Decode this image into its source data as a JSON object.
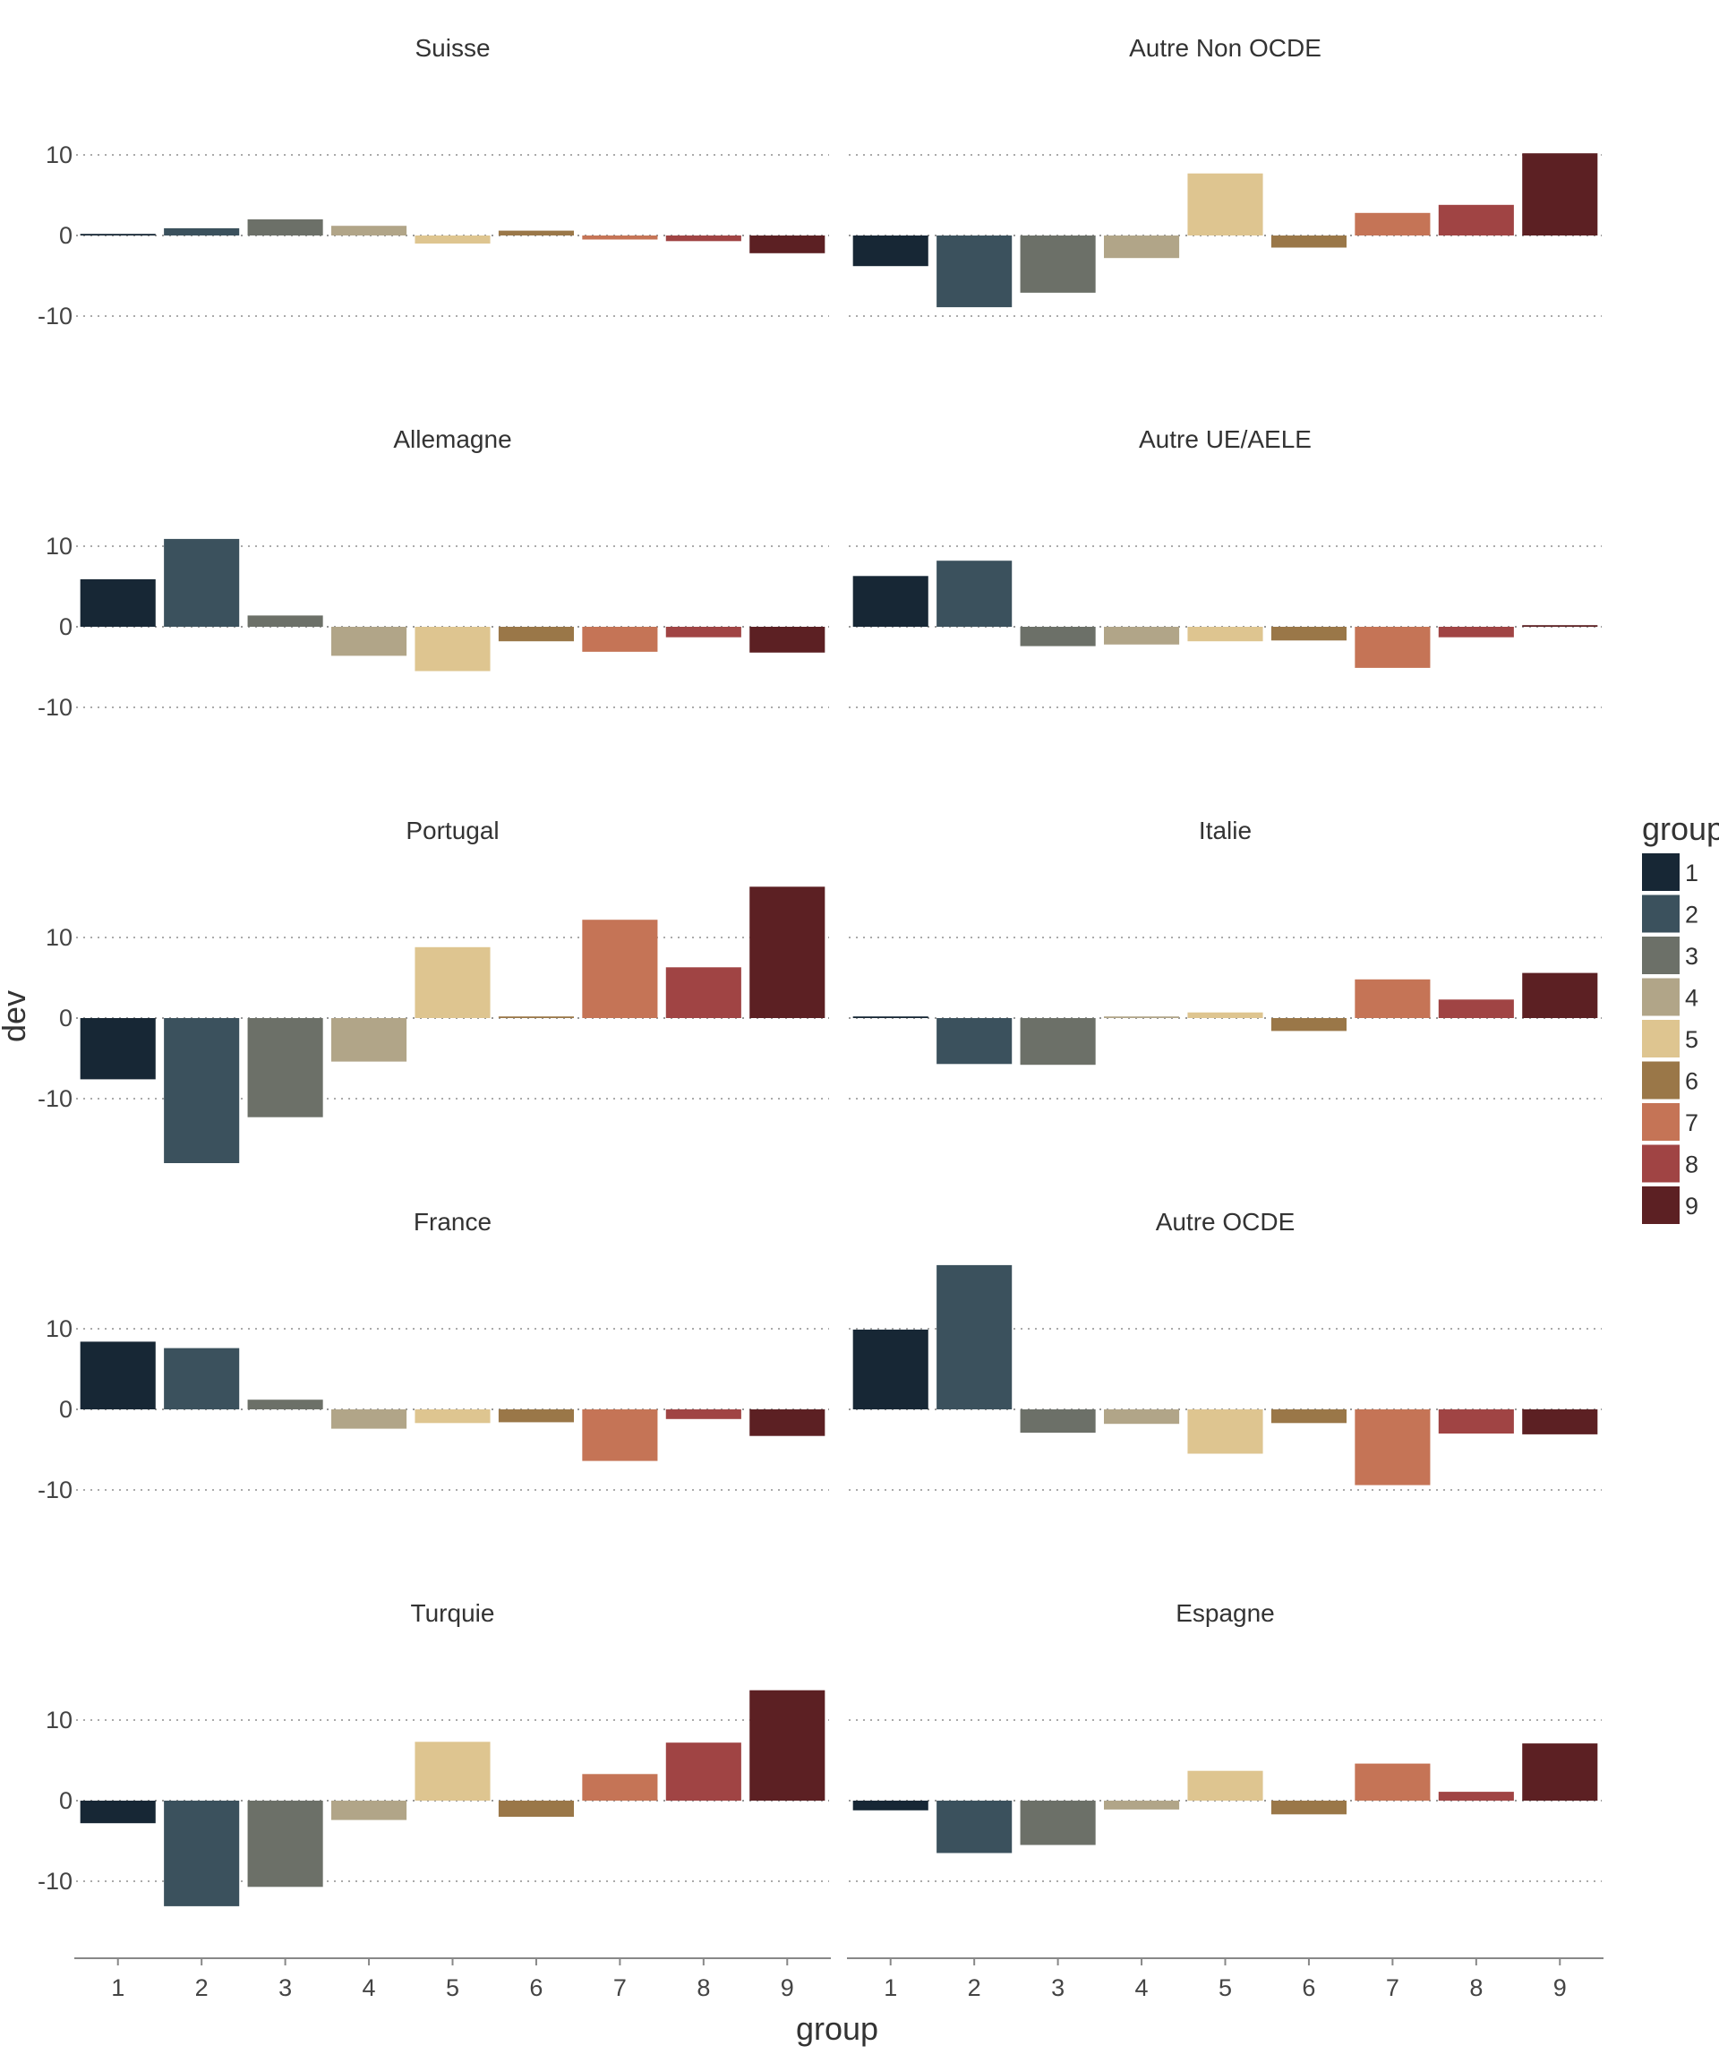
{
  "chart_data": {
    "type": "bar",
    "facet_layout": "5 rows x 2 columns",
    "xlabel": "group",
    "ylabel": "dev",
    "categories": [
      "1",
      "2",
      "3",
      "4",
      "5",
      "6",
      "7",
      "8",
      "9"
    ],
    "ylim": [
      -19,
      19
    ],
    "yticks": [
      -10,
      0,
      10
    ],
    "grid": "dotted horizontal",
    "legend": {
      "title": "group",
      "position": "right",
      "labels": [
        "1",
        "2",
        "3",
        "4",
        "5",
        "6",
        "7",
        "8",
        "9"
      ]
    },
    "colors": [
      "#172735",
      "#3b515d",
      "#6c7068",
      "#b1a588",
      "#dec590",
      "#9a7748",
      "#c57456",
      "#a04444",
      "#5c2023"
    ],
    "panels": [
      {
        "title": "Suisse",
        "values": [
          0.2,
          0.9,
          2.0,
          1.2,
          -1.0,
          0.6,
          -0.5,
          -0.7,
          -2.2
        ]
      },
      {
        "title": "Autre Non OCDE",
        "values": [
          -3.8,
          -8.9,
          -7.1,
          -2.8,
          7.7,
          -1.5,
          2.8,
          3.8,
          10.2
        ]
      },
      {
        "title": "Allemagne",
        "values": [
          5.9,
          10.9,
          1.4,
          -3.6,
          -5.5,
          -1.8,
          -3.1,
          -1.3,
          -3.2
        ]
      },
      {
        "title": "Autre UE/AELE",
        "values": [
          6.3,
          8.2,
          -2.4,
          -2.2,
          -1.8,
          -1.7,
          -5.1,
          -1.3,
          0.2
        ]
      },
      {
        "title": "Portugal",
        "values": [
          -7.6,
          -18.0,
          -12.3,
          -5.4,
          8.8,
          0.2,
          12.2,
          6.3,
          16.3
        ]
      },
      {
        "title": "Italie",
        "values": [
          0.2,
          -5.7,
          -5.8,
          0.2,
          0.7,
          -1.6,
          4.8,
          2.3,
          5.6
        ]
      },
      {
        "title": "France",
        "values": [
          8.4,
          7.6,
          1.2,
          -2.4,
          -1.7,
          -1.6,
          -6.4,
          -1.2,
          -3.3
        ]
      },
      {
        "title": "Autre OCDE",
        "values": [
          9.9,
          17.9,
          -2.9,
          -1.8,
          -5.5,
          -1.7,
          -9.4,
          -3.0,
          -3.1
        ]
      },
      {
        "title": "Turquie",
        "values": [
          -2.8,
          -13.1,
          -10.7,
          -2.4,
          7.3,
          -2.0,
          3.3,
          7.2,
          13.7
        ]
      },
      {
        "title": "Espagne",
        "values": [
          -1.2,
          -6.5,
          -5.5,
          -1.1,
          3.7,
          -1.7,
          4.6,
          1.1,
          7.1
        ]
      }
    ]
  }
}
